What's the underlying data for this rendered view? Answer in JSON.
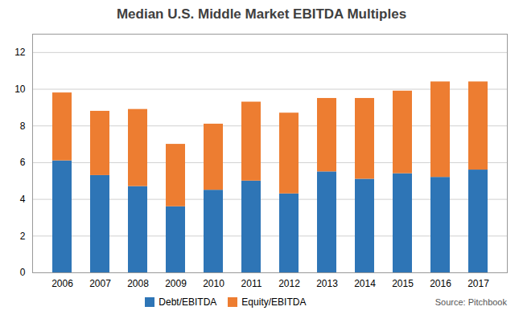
{
  "chart_data": {
    "type": "bar",
    "title": "Median U.S. Middle Market EBITDA Multiples",
    "categories": [
      "2006",
      "2007",
      "2008",
      "2009",
      "2010",
      "2011",
      "2012",
      "2013",
      "2014",
      "2015",
      "2016",
      "2017"
    ],
    "series": [
      {
        "name": "Debt/EBITDA",
        "color": "#2E75B6",
        "values": [
          6.1,
          5.3,
          4.7,
          3.6,
          4.5,
          5.0,
          4.3,
          5.5,
          5.1,
          5.4,
          5.2,
          5.6
        ]
      },
      {
        "name": "Equity/EBITDA",
        "color": "#ED7D31",
        "values": [
          3.7,
          3.5,
          4.2,
          3.4,
          3.6,
          4.3,
          4.4,
          4.0,
          4.4,
          4.5,
          5.2,
          4.8
        ]
      }
    ],
    "stacked": true,
    "ylim": [
      0,
      13
    ],
    "yticks": [
      0,
      2,
      4,
      6,
      8,
      10,
      12
    ],
    "grid": true,
    "legend": "bottom",
    "annotations": [
      "Source: Pitchbook"
    ]
  }
}
